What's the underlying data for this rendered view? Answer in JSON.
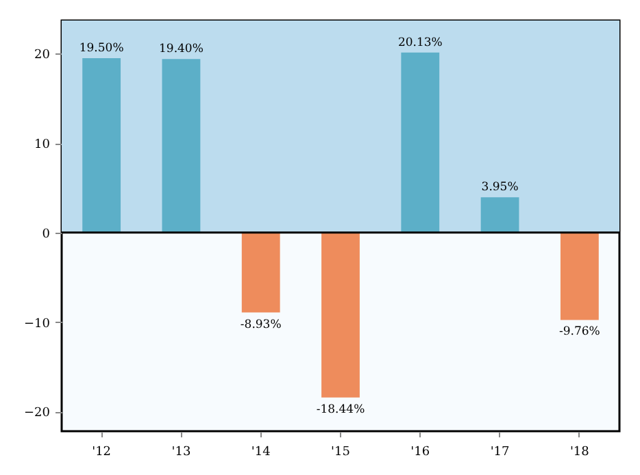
{
  "chart_data": {
    "type": "bar",
    "categories": [
      "'12",
      "'13",
      "'14",
      "'15",
      "'16",
      "'17",
      "'18"
    ],
    "values": [
      19.5,
      19.4,
      -8.93,
      -18.44,
      20.13,
      3.95,
      -9.76
    ],
    "colors": [
      "#5cafc8",
      "#5cafc8",
      "#ee8c5c",
      "#ee8c5c",
      "#5cafc8",
      "#5cafc8",
      "#ee8c5c"
    ],
    "value_labels": [
      "19.50%",
      "19.40%",
      "-8.93%",
      "-18.44%",
      "20.13%",
      "3.95%",
      "-9.76%"
    ],
    "ylim": [
      -22.2,
      23.7
    ],
    "yticks": [
      -20,
      -10,
      0,
      10,
      20
    ],
    "ref_lines": [
      {
        "axis": "y",
        "value": 0,
        "color": "#000000"
      }
    ],
    "bands": [
      {
        "axis": "y",
        "from": 0,
        "to": 23.7,
        "color": "#bcdcee"
      }
    ],
    "grid": false
  }
}
